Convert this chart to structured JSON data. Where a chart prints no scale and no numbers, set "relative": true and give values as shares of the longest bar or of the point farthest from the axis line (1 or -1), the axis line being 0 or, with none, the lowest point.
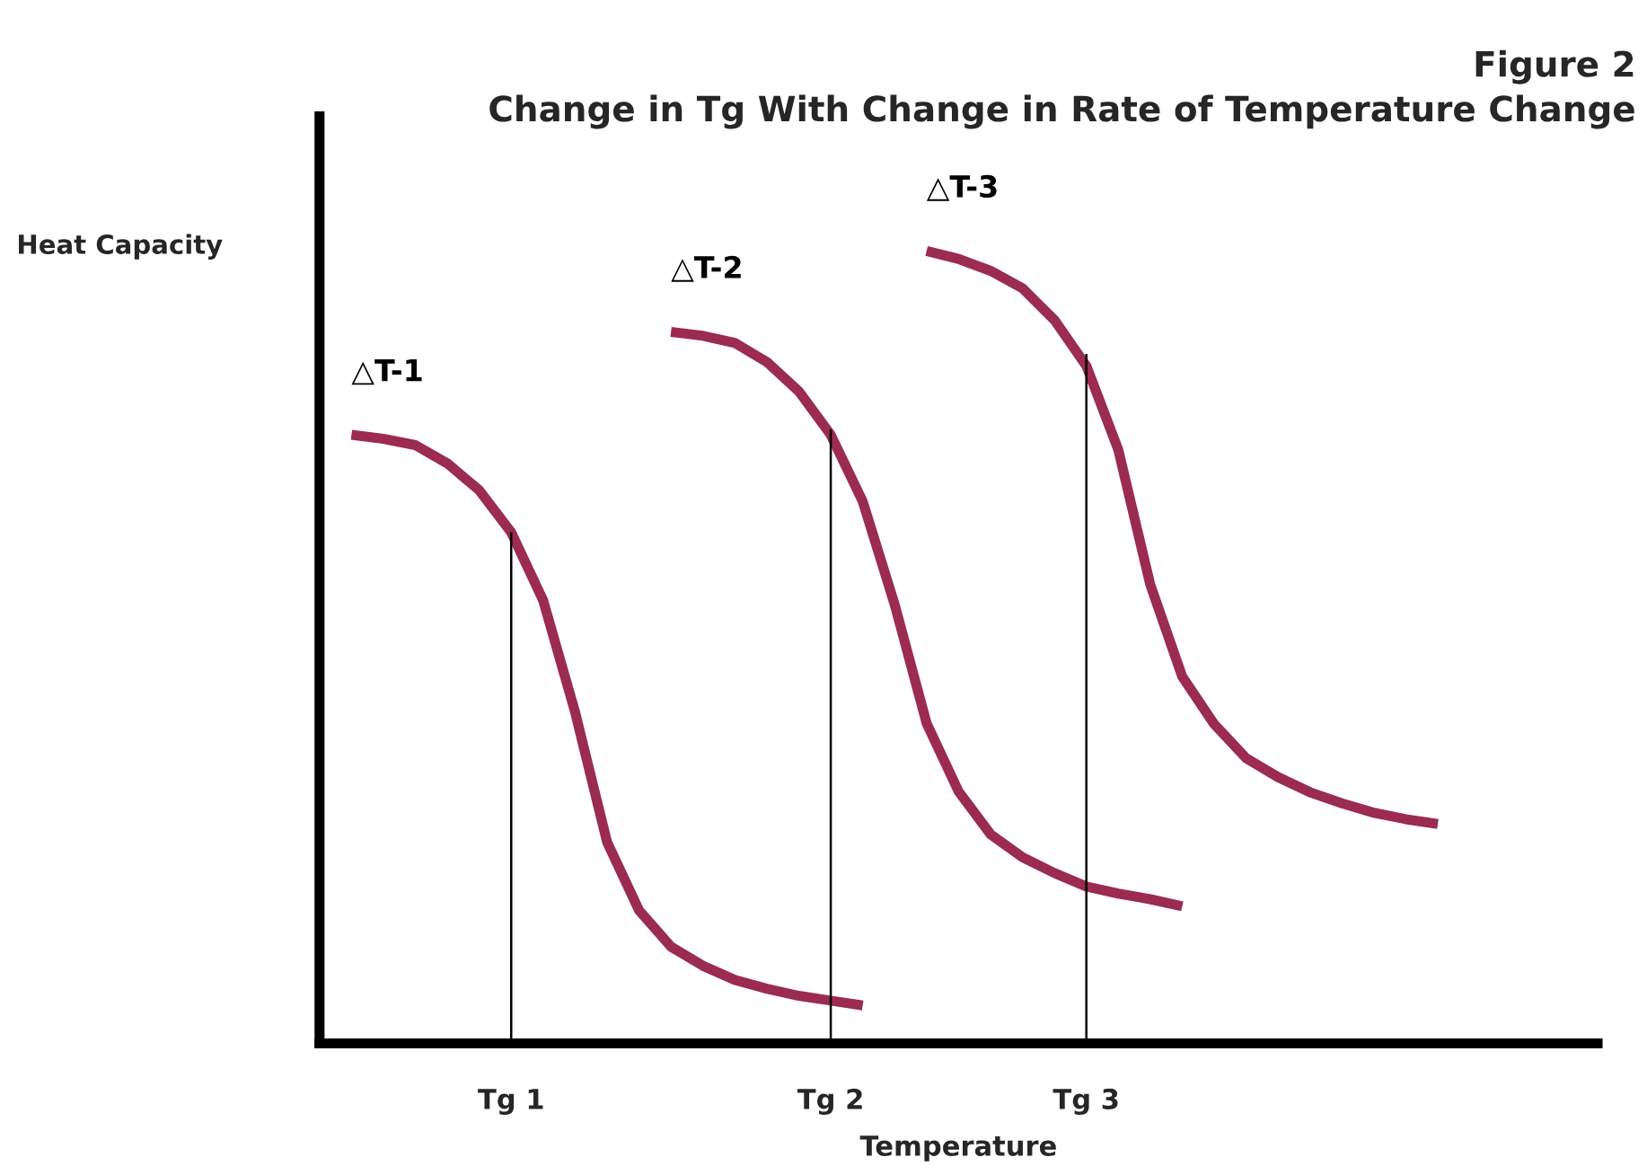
{
  "chart_data": {
    "type": "line",
    "relative": true,
    "title": "Figure 2\nChange in Tg With Change in Rate of Temperature Change",
    "xlabel": "Temperature",
    "ylabel": "Heat Capacity",
    "categories": [
      null,
      null,
      null,
      null,
      null,
      null,
      "Tg 1",
      null,
      null,
      null,
      null,
      null,
      null,
      null,
      null,
      null,
      "Tg 2",
      null,
      null,
      null,
      null,
      null,
      null,
      null,
      "Tg 3",
      null,
      null,
      null,
      null,
      null,
      null,
      null,
      null,
      null,
      null,
      null,
      null,
      null,
      null,
      null,
      null
    ],
    "grid": false,
    "legend": false,
    "marker": "none",
    "line_style": "solid",
    "series": [
      {
        "name": "△T-1",
        "color": "#9b2c4f",
        "values": [
          null,
          0.768,
          0.763,
          0.755,
          0.732,
          0.698,
          0.645,
          0.559,
          0.418,
          0.254,
          0.168,
          0.122,
          0.098,
          0.08,
          0.069,
          0.06,
          0.054,
          0.048,
          null,
          null,
          null,
          null,
          null,
          null,
          null,
          null,
          null,
          null,
          null,
          null,
          null,
          null,
          null,
          null,
          null,
          null,
          null,
          null,
          null,
          null,
          null
        ]
      },
      {
        "name": "△T-2",
        "color": "#9b2c4f",
        "values": [
          null,
          null,
          null,
          null,
          null,
          null,
          null,
          null,
          null,
          null,
          null,
          0.898,
          0.893,
          0.884,
          0.86,
          0.823,
          0.768,
          0.684,
          0.554,
          0.404,
          0.318,
          0.264,
          0.235,
          0.215,
          0.198,
          0.189,
          0.182,
          0.173,
          null,
          null,
          null,
          null,
          null,
          null,
          null,
          null,
          null,
          null,
          null,
          null,
          null
        ]
      },
      {
        "name": "△T-3",
        "color": "#9b2c4f",
        "values": [
          null,
          null,
          null,
          null,
          null,
          null,
          null,
          null,
          null,
          null,
          null,
          null,
          null,
          null,
          null,
          null,
          null,
          null,
          null,
          1.0,
          0.99,
          0.975,
          0.953,
          0.913,
          0.855,
          0.749,
          0.579,
          0.463,
          0.403,
          0.36,
          0.336,
          0.317,
          0.303,
          0.291,
          0.283,
          0.277,
          null,
          null,
          null,
          null,
          null
        ]
      },
      {
        "type": "bar",
        "color": "#000000",
        "values": [
          null,
          null,
          null,
          null,
          null,
          null,
          0.645,
          null,
          null,
          null,
          null,
          null,
          null,
          null,
          null,
          null,
          0.775,
          null,
          null,
          null,
          null,
          null,
          null,
          null,
          0.87,
          null,
          null,
          null,
          null,
          null,
          null,
          null,
          null,
          null,
          null,
          null,
          null,
          null,
          null,
          null,
          null
        ]
      }
    ]
  }
}
